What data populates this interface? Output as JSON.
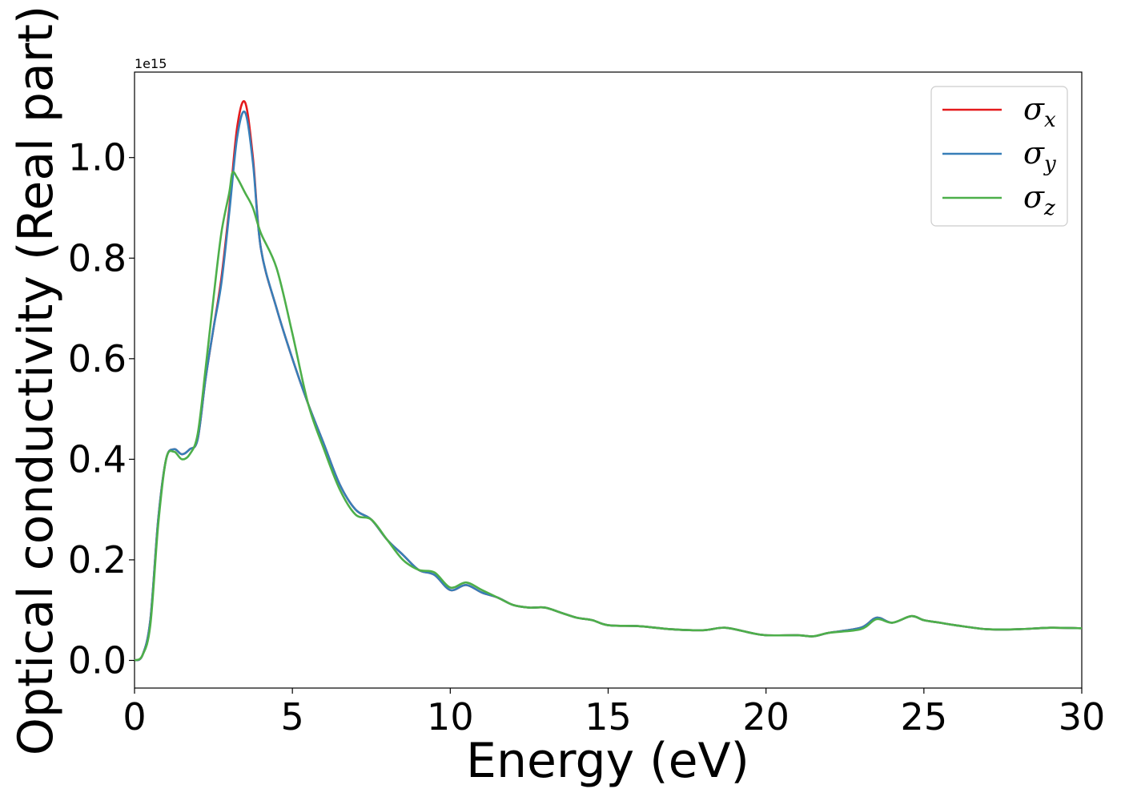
{
  "chart_data": {
    "type": "line",
    "title": "",
    "xlabel": "Energy (eV)",
    "ylabel": "Optical conductivity (Real part)",
    "y_offset_label": "1e15",
    "xlim": [
      0,
      30
    ],
    "ylim": [
      -0.055,
      1.17
    ],
    "x_ticks": [
      0,
      5,
      10,
      15,
      20,
      25,
      30
    ],
    "x_tick_labels": [
      "0",
      "5",
      "10",
      "15",
      "20",
      "25",
      "30"
    ],
    "y_ticks": [
      0.0,
      0.2,
      0.4,
      0.6,
      0.8,
      1.0
    ],
    "y_tick_labels": [
      "0.0",
      "0.2",
      "0.4",
      "0.6",
      "0.8",
      "1.0"
    ],
    "grid": false,
    "legend_position": "top-right",
    "series": [
      {
        "name": "σx",
        "legend_base": "σ",
        "legend_sub": "x",
        "color": "#e41a1c",
        "x": [
          0,
          0.25,
          0.5,
          0.75,
          1.0,
          1.25,
          1.5,
          1.75,
          2.0,
          2.25,
          2.5,
          2.75,
          3.0,
          3.25,
          3.5,
          3.75,
          4.0,
          4.5,
          5.0,
          5.5,
          6.0,
          6.5,
          7.0,
          7.5,
          8.0,
          8.5,
          9.0,
          9.5,
          10.0,
          10.5,
          11.0,
          11.5,
          12.0,
          12.5,
          13.0,
          13.5,
          14.0,
          14.5,
          15.0,
          16.0,
          17.0,
          18.0,
          18.7,
          19.5,
          20.0,
          21.0,
          21.5,
          22.0,
          23.0,
          23.5,
          24.0,
          24.6,
          25.0,
          25.5,
          26.0,
          27.0,
          28.0,
          29.0,
          30.0
        ],
        "y": [
          0.0,
          0.01,
          0.08,
          0.28,
          0.4,
          0.42,
          0.41,
          0.42,
          0.44,
          0.56,
          0.66,
          0.76,
          0.9,
          1.06,
          1.11,
          1.0,
          0.82,
          0.7,
          0.6,
          0.51,
          0.43,
          0.35,
          0.3,
          0.28,
          0.24,
          0.21,
          0.18,
          0.17,
          0.14,
          0.15,
          0.135,
          0.125,
          0.11,
          0.105,
          0.105,
          0.095,
          0.085,
          0.08,
          0.07,
          0.068,
          0.062,
          0.06,
          0.065,
          0.055,
          0.05,
          0.05,
          0.048,
          0.055,
          0.065,
          0.085,
          0.075,
          0.088,
          0.08,
          0.075,
          0.07,
          0.062,
          0.062,
          0.065,
          0.064
        ]
      },
      {
        "name": "σy",
        "legend_base": "σ",
        "legend_sub": "y",
        "color": "#377eb8",
        "x": [
          0,
          0.25,
          0.5,
          0.75,
          1.0,
          1.25,
          1.5,
          1.75,
          2.0,
          2.25,
          2.5,
          2.75,
          3.0,
          3.25,
          3.5,
          3.75,
          4.0,
          4.5,
          5.0,
          5.5,
          6.0,
          6.5,
          7.0,
          7.5,
          8.0,
          8.5,
          9.0,
          9.5,
          10.0,
          10.5,
          11.0,
          11.5,
          12.0,
          12.5,
          13.0,
          13.5,
          14.0,
          14.5,
          15.0,
          16.0,
          17.0,
          18.0,
          18.7,
          19.5,
          20.0,
          21.0,
          21.5,
          22.0,
          23.0,
          23.5,
          24.0,
          24.6,
          25.0,
          25.5,
          26.0,
          27.0,
          28.0,
          29.0,
          30.0
        ],
        "y": [
          0.0,
          0.01,
          0.08,
          0.28,
          0.4,
          0.42,
          0.41,
          0.42,
          0.44,
          0.56,
          0.66,
          0.75,
          0.89,
          1.04,
          1.09,
          0.99,
          0.82,
          0.7,
          0.6,
          0.51,
          0.43,
          0.35,
          0.3,
          0.28,
          0.24,
          0.21,
          0.18,
          0.17,
          0.14,
          0.15,
          0.135,
          0.125,
          0.11,
          0.105,
          0.105,
          0.095,
          0.085,
          0.08,
          0.07,
          0.068,
          0.062,
          0.06,
          0.065,
          0.055,
          0.05,
          0.05,
          0.048,
          0.055,
          0.065,
          0.085,
          0.075,
          0.088,
          0.08,
          0.075,
          0.07,
          0.062,
          0.062,
          0.065,
          0.064
        ]
      },
      {
        "name": "σz",
        "legend_base": "σ",
        "legend_sub": "z",
        "color": "#4daf4a",
        "x": [
          0,
          0.25,
          0.5,
          0.75,
          1.0,
          1.25,
          1.5,
          1.75,
          2.0,
          2.25,
          2.5,
          2.75,
          3.0,
          3.1,
          3.25,
          3.5,
          3.75,
          4.0,
          4.5,
          5.0,
          5.5,
          6.0,
          6.5,
          7.0,
          7.5,
          8.0,
          8.5,
          9.0,
          9.5,
          10.0,
          10.5,
          11.0,
          11.5,
          12.0,
          12.5,
          13.0,
          13.5,
          14.0,
          14.5,
          15.0,
          16.0,
          17.0,
          18.0,
          18.7,
          19.5,
          20.0,
          21.0,
          21.5,
          22.0,
          23.0,
          23.5,
          24.0,
          24.6,
          25.0,
          25.5,
          26.0,
          27.0,
          28.0,
          29.0,
          30.0
        ],
        "y": [
          0.0,
          0.01,
          0.07,
          0.27,
          0.4,
          0.415,
          0.4,
          0.41,
          0.45,
          0.58,
          0.72,
          0.85,
          0.93,
          0.97,
          0.96,
          0.93,
          0.9,
          0.85,
          0.78,
          0.65,
          0.51,
          0.42,
          0.34,
          0.29,
          0.28,
          0.24,
          0.2,
          0.18,
          0.175,
          0.145,
          0.155,
          0.14,
          0.125,
          0.11,
          0.105,
          0.105,
          0.095,
          0.085,
          0.08,
          0.07,
          0.068,
          0.062,
          0.06,
          0.065,
          0.055,
          0.05,
          0.05,
          0.048,
          0.055,
          0.062,
          0.082,
          0.075,
          0.088,
          0.08,
          0.075,
          0.07,
          0.062,
          0.062,
          0.065,
          0.064
        ]
      }
    ]
  }
}
